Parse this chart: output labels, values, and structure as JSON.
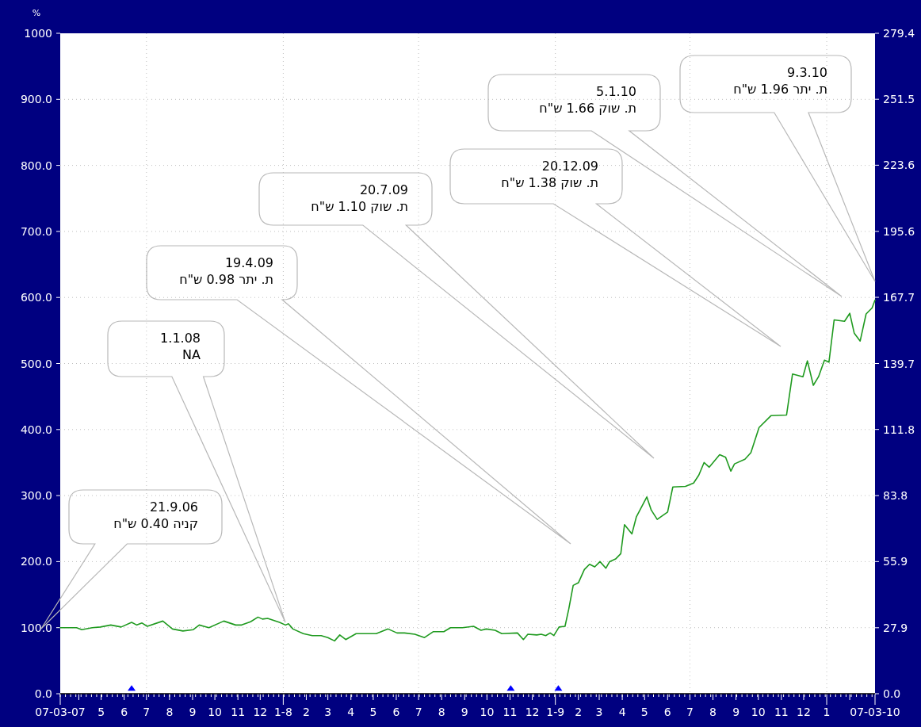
{
  "chart_data": {
    "type": "line",
    "ylabel": "%",
    "xlim": [
      "2007-03-07",
      "2010-03-07"
    ],
    "xticks": [
      {
        "value": "2007-03-07",
        "label": "07-03-07"
      },
      {
        "value": "2007-04-01",
        "label": null
      },
      {
        "value": "2007-05-01",
        "label": "5"
      },
      {
        "value": "2007-06-01",
        "label": "6"
      },
      {
        "value": "2007-07-01",
        "label": "7"
      },
      {
        "value": "2007-08-01",
        "label": "8"
      },
      {
        "value": "2007-09-01",
        "label": "9"
      },
      {
        "value": "2007-10-01",
        "label": "10"
      },
      {
        "value": "2007-11-01",
        "label": "11"
      },
      {
        "value": "2007-12-01",
        "label": "12"
      },
      {
        "value": "2008-01-01",
        "label": "1-8"
      },
      {
        "value": "2008-02-01",
        "label": "2"
      },
      {
        "value": "2008-03-01",
        "label": "3"
      },
      {
        "value": "2008-04-01",
        "label": "4"
      },
      {
        "value": "2008-05-01",
        "label": "5"
      },
      {
        "value": "2008-06-01",
        "label": "6"
      },
      {
        "value": "2008-07-01",
        "label": "7"
      },
      {
        "value": "2008-08-01",
        "label": "8"
      },
      {
        "value": "2008-09-01",
        "label": "9"
      },
      {
        "value": "2008-10-01",
        "label": "10"
      },
      {
        "value": "2008-11-01",
        "label": "11"
      },
      {
        "value": "2008-12-01",
        "label": "12"
      },
      {
        "value": "2009-01-01",
        "label": "1-9"
      },
      {
        "value": "2009-02-01",
        "label": "2"
      },
      {
        "value": "2009-03-01",
        "label": "3"
      },
      {
        "value": "2009-04-01",
        "label": "4"
      },
      {
        "value": "2009-05-01",
        "label": "5"
      },
      {
        "value": "2009-06-01",
        "label": "6"
      },
      {
        "value": "2009-07-01",
        "label": "7"
      },
      {
        "value": "2009-08-01",
        "label": "8"
      },
      {
        "value": "2009-09-01",
        "label": "9"
      },
      {
        "value": "2009-10-01",
        "label": "10"
      },
      {
        "value": "2009-11-01",
        "label": "11"
      },
      {
        "value": "2009-12-01",
        "label": "12"
      },
      {
        "value": "2010-01-01",
        "label": "1"
      },
      {
        "value": "2010-02-01",
        "label": null
      },
      {
        "value": "2010-03-07",
        "label": "07-03-10"
      }
    ],
    "ylim": [
      0,
      1000
    ],
    "yticks": [
      {
        "value": 0,
        "label": "0.0"
      },
      {
        "value": 100,
        "label": "100.0"
      },
      {
        "value": 200,
        "label": "200.0"
      },
      {
        "value": 300,
        "label": "300.0"
      },
      {
        "value": 400,
        "label": "400.0"
      },
      {
        "value": 500,
        "label": "500.0"
      },
      {
        "value": 600,
        "label": "600.0"
      },
      {
        "value": 700,
        "label": "700.0"
      },
      {
        "value": 800,
        "label": "800.0"
      },
      {
        "value": 900,
        "label": "900.0"
      },
      1000
    ],
    "y2lim": [
      0,
      279.4
    ],
    "y2ticks": [
      {
        "value": 0,
        "label": "0.0"
      },
      27.9,
      55.9,
      83.8,
      111.8,
      139.7,
      167.7,
      195.6,
      223.6,
      251.5,
      279.4
    ],
    "grid": true,
    "series": [
      {
        "type": "line",
        "color": "#1f9a1f",
        "x": [
          "2007-03-07",
          "2007-03-29",
          "2007-04-05",
          "2007-04-19",
          "2007-04-30",
          "2007-05-14",
          "2007-05-28",
          "2007-06-11",
          "2007-06-18",
          "2007-06-25",
          "2007-07-02",
          "2007-07-23",
          "2007-08-05",
          "2007-08-19",
          "2007-09-02",
          "2007-09-10",
          "2007-09-23",
          "2007-10-13",
          "2007-10-29",
          "2007-11-06",
          "2007-11-18",
          "2007-11-28",
          "2007-12-04",
          "2007-12-11",
          "2007-12-27",
          "2008-01-04",
          "2008-01-08",
          "2008-01-14",
          "2008-01-28",
          "2008-02-09",
          "2008-02-21",
          "2008-03-01",
          "2008-03-10",
          "2008-03-17",
          "2008-03-25",
          "2008-04-08",
          "2008-05-05",
          "2008-05-21",
          "2008-06-02",
          "2008-06-12",
          "2008-06-26",
          "2008-07-09",
          "2008-07-21",
          "2008-08-04",
          "2008-08-13",
          "2008-08-29",
          "2008-09-13",
          "2008-09-23",
          "2008-09-30",
          "2008-10-12",
          "2008-10-21",
          "2008-11-11",
          "2008-11-19",
          "2008-11-25",
          "2008-12-07",
          "2008-12-13",
          "2008-12-19",
          "2008-12-25",
          "2008-12-30",
          "2009-01-06",
          "2009-01-14",
          "2009-01-19",
          "2009-01-25",
          "2009-02-01",
          "2009-02-09",
          "2009-02-16",
          "2009-02-23",
          "2009-03-02",
          "2009-03-10",
          "2009-03-15",
          "2009-03-23",
          "2009-03-30",
          "2009-04-04",
          "2009-04-14",
          "2009-04-20",
          "2009-05-04",
          "2009-05-10",
          "2009-05-18",
          "2009-06-01",
          "2009-06-08",
          "2009-06-25",
          "2009-07-06",
          "2009-07-13",
          "2009-07-20",
          "2009-07-27",
          "2009-08-10",
          "2009-08-18",
          "2009-08-25",
          "2009-08-30",
          "2009-09-13",
          "2009-09-21",
          "2009-10-02",
          "2009-10-18",
          "2009-11-08",
          "2009-11-16",
          "2009-11-30",
          "2009-12-06",
          "2009-12-14",
          "2009-12-21",
          "2009-12-29",
          "2010-01-04",
          "2010-01-11",
          "2010-01-25",
          "2010-02-01",
          "2010-02-07",
          "2010-02-15",
          "2010-02-23",
          "2010-03-03",
          "2010-03-07"
        ],
        "values": [
          100,
          100,
          97,
          100,
          101,
          104,
          101,
          108,
          104,
          107,
          102,
          110,
          98,
          95,
          97,
          104,
          100,
          110,
          104,
          104,
          109,
          116,
          113,
          114,
          108,
          104,
          106,
          98,
          91,
          88,
          88,
          85,
          80,
          89,
          82,
          91,
          91,
          98,
          92,
          92,
          90,
          85,
          94,
          94,
          100,
          100,
          102,
          96,
          98,
          96,
          91,
          92,
          82,
          90,
          89,
          90,
          88,
          92,
          88,
          101,
          102,
          128,
          164,
          168,
          188,
          196,
          192,
          200,
          190,
          200,
          204,
          212,
          256,
          242,
          268,
          298,
          278,
          264,
          275,
          313,
          314,
          319,
          331,
          350,
          343,
          362,
          358,
          337,
          348,
          355,
          365,
          403,
          421,
          422,
          484,
          480,
          504,
          467,
          480,
          505,
          502,
          566,
          564,
          576,
          546,
          534,
          575,
          584,
          596
        ]
      },
      {
        "type": "scatter",
        "color": "#0000ff",
        "marker": "triangle",
        "x": [
          "2007-06-11",
          "2008-11-02",
          "2009-01-05"
        ],
        "values": [
          8,
          8,
          8
        ]
      }
    ],
    "annotations": [
      "21.9.06\nקניה 0.40 ש\"ח",
      "1.1.08\nNA",
      "19.4.09\nת. יתר 0.98 ש\"ח",
      "20.7.09\nת. שוק 1.10 ש\"ח",
      "20.12.09\nת. שוק 1.38 ש\"ח",
      "5.1.10\nת. שוק 1.66 ש\"ח",
      "9.3.10\nת. יתר 1.96 ש\"ח"
    ]
  }
}
